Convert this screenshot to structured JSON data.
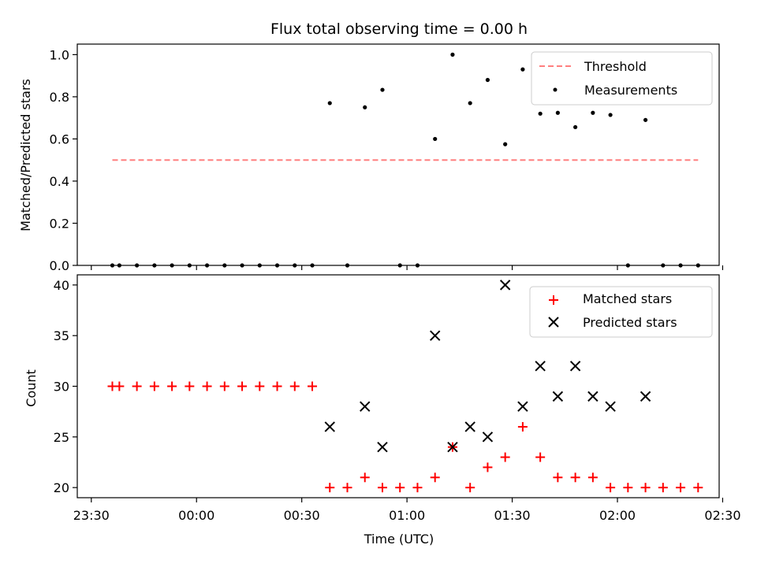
{
  "chart_data": [
    {
      "type": "scatter",
      "title": "Flux total observing time = 0.00 h",
      "xlabel": "",
      "ylabel": "Matched/Predicted stars",
      "xlim": [
        "23:26",
        "02:29"
      ],
      "ylim": [
        0,
        1.05
      ],
      "y_ticks": [
        "0.0",
        "0.2",
        "0.4",
        "0.6",
        "0.8",
        "1.0"
      ],
      "x_ticks": [
        "23:30",
        "00:00",
        "00:30",
        "01:00",
        "01:30",
        "02:00",
        "02:30"
      ],
      "x_tick_labels_shown": false,
      "legend_position": "top-right",
      "series": [
        {
          "name": "Threshold",
          "kind": "dashed-line",
          "color": "#ff7f7f",
          "x": [
            "23:36",
            "02:23"
          ],
          "y": [
            0.5,
            0.5
          ]
        },
        {
          "name": "Measurements",
          "kind": "dot",
          "color": "#000000",
          "x": [
            "23:36",
            "23:38",
            "23:43",
            "23:48",
            "23:53",
            "23:58",
            "00:03",
            "00:08",
            "00:13",
            "00:18",
            "00:23",
            "00:28",
            "00:33",
            "00:38",
            "00:43",
            "00:48",
            "00:53",
            "00:58",
            "01:03",
            "01:08",
            "01:13",
            "01:18",
            "01:23",
            "01:28",
            "01:33",
            "01:38",
            "01:43",
            "01:48",
            "01:53",
            "01:58",
            "02:03",
            "02:08",
            "02:13",
            "02:18",
            "02:23"
          ],
          "y": [
            0.0,
            0.0,
            0.0,
            0.0,
            0.0,
            0.0,
            0.0,
            0.0,
            0.0,
            0.0,
            0.0,
            0.0,
            0.0,
            0.77,
            0.0,
            0.75,
            0.833,
            0.0,
            0.0,
            0.6,
            1.0,
            0.77,
            0.88,
            0.575,
            0.93,
            0.72,
            0.724,
            0.656,
            0.724,
            0.714,
            0.0,
            0.69,
            0.0,
            0.0,
            0.0
          ]
        }
      ]
    },
    {
      "type": "scatter",
      "title": "",
      "xlabel": "Time (UTC)",
      "ylabel": "Count",
      "xlim": [
        "23:26",
        "02:29"
      ],
      "ylim": [
        19,
        41
      ],
      "y_ticks": [
        "20",
        "25",
        "30",
        "35",
        "40"
      ],
      "x_ticks": [
        "23:30",
        "00:00",
        "00:30",
        "01:00",
        "01:30",
        "02:00",
        "02:30"
      ],
      "legend_position": "top-right",
      "series": [
        {
          "name": "Matched stars",
          "kind": "plus",
          "color": "#ff0000",
          "x": [
            "23:36",
            "23:38",
            "23:43",
            "23:48",
            "23:53",
            "23:58",
            "00:03",
            "00:08",
            "00:13",
            "00:18",
            "00:23",
            "00:28",
            "00:33",
            "00:38",
            "00:43",
            "00:48",
            "00:53",
            "00:58",
            "01:03",
            "01:08",
            "01:13",
            "01:18",
            "01:23",
            "01:28",
            "01:33",
            "01:38",
            "01:43",
            "01:48",
            "01:53",
            "01:58",
            "02:03",
            "02:08",
            "02:13",
            "02:18",
            "02:23"
          ],
          "y": [
            30,
            30,
            30,
            30,
            30,
            30,
            30,
            30,
            30,
            30,
            30,
            30,
            30,
            20,
            20,
            21,
            20,
            20,
            20,
            21,
            24,
            20,
            22,
            23,
            26,
            23,
            21,
            21,
            21,
            20,
            20,
            20,
            20,
            20,
            20
          ]
        },
        {
          "name": "Predicted stars",
          "kind": "x",
          "color": "#000000",
          "x": [
            "00:38",
            "00:48",
            "00:53",
            "01:08",
            "01:13",
            "01:18",
            "01:23",
            "01:28",
            "01:33",
            "01:38",
            "01:43",
            "01:48",
            "01:53",
            "01:58",
            "02:08"
          ],
          "y": [
            26,
            28,
            24,
            35,
            24,
            26,
            25,
            40,
            28,
            32,
            29,
            32,
            29,
            28,
            29
          ]
        }
      ]
    }
  ]
}
